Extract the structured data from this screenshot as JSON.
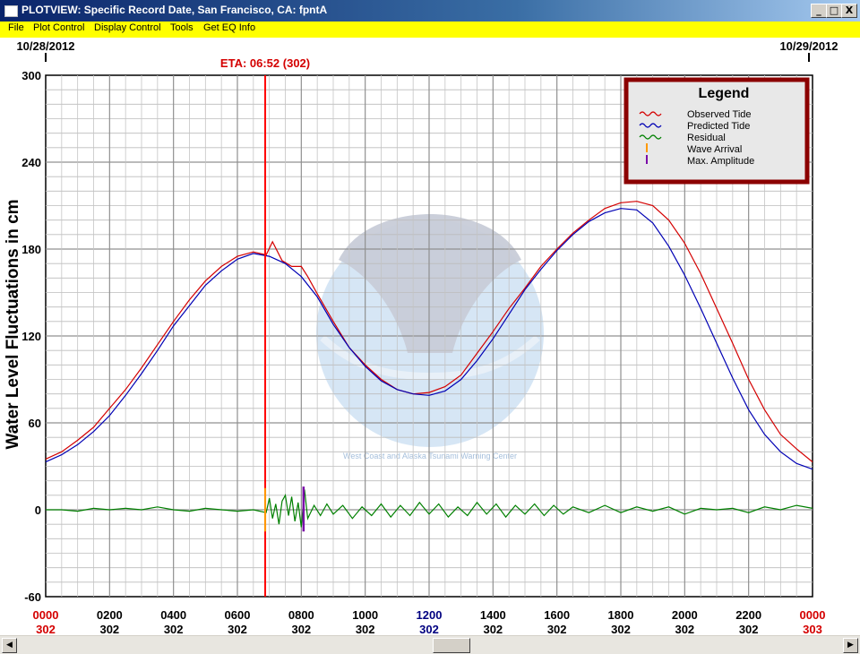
{
  "window": {
    "title": "PLOTVIEW: Specific Record Date, San Francisco, CA: fpntA",
    "minimize_glyph": "_",
    "maximize_glyph": "□",
    "close_glyph": "X"
  },
  "menu": [
    "File",
    "Plot Control",
    "Display Control",
    "Tools",
    "Get EQ Info"
  ],
  "header": {
    "date_left": "10/28/2012",
    "date_right": "10/29/2012",
    "eta_label": "ETA: 06:52 (302)"
  },
  "colors": {
    "observed": "#d40000",
    "predicted": "#0000b4",
    "residual": "#008000",
    "wave_arrival": "#ff9900",
    "max_amplitude": "#7a0aa8",
    "eta_line": "#ff0000",
    "legend_border": "#8b0000",
    "menu_bg": "#ffff00"
  },
  "legend": {
    "title": "Legend",
    "entries": [
      {
        "label": "Observed Tide",
        "color": "#d40000",
        "marker": "wave"
      },
      {
        "label": "Predicted Tide",
        "color": "#0000b4",
        "marker": "wave"
      },
      {
        "label": "Residual",
        "color": "#008000",
        "marker": "wave"
      },
      {
        "label": "Wave Arrival",
        "color": "#ff9900",
        "marker": "bar"
      },
      {
        "label": "Max. Amplitude",
        "color": "#7a0aa8",
        "marker": "bar"
      }
    ]
  },
  "watermark_text": "West Coast and Alaska Tsunami Warning Center",
  "chart_data": {
    "type": "line",
    "ylabel": "Water Level Fluctuations in cm",
    "xlabel": "",
    "xlim": [
      0,
      24
    ],
    "ylim": [
      -60,
      300
    ],
    "y_ticks": [
      300,
      240,
      180,
      120,
      60,
      0,
      -60
    ],
    "x_ticks": [
      {
        "x": 0,
        "time": "0000",
        "day": "302",
        "color": "#d40000"
      },
      {
        "x": 2,
        "time": "0200",
        "day": "302",
        "color": "#000000"
      },
      {
        "x": 4,
        "time": "0400",
        "day": "302",
        "color": "#000000"
      },
      {
        "x": 6,
        "time": "0600",
        "day": "302",
        "color": "#000000"
      },
      {
        "x": 8,
        "time": "0800",
        "day": "302",
        "color": "#000000"
      },
      {
        "x": 10,
        "time": "1000",
        "day": "302",
        "color": "#000000"
      },
      {
        "x": 12,
        "time": "1200",
        "day": "302",
        "color": "#000080"
      },
      {
        "x": 14,
        "time": "1400",
        "day": "302",
        "color": "#000000"
      },
      {
        "x": 16,
        "time": "1600",
        "day": "302",
        "color": "#000000"
      },
      {
        "x": 18,
        "time": "1800",
        "day": "302",
        "color": "#000000"
      },
      {
        "x": 20,
        "time": "2000",
        "day": "302",
        "color": "#000000"
      },
      {
        "x": 22,
        "time": "2200",
        "day": "302",
        "color": "#000000"
      },
      {
        "x": 24,
        "time": "0000",
        "day": "303",
        "color": "#d40000"
      }
    ],
    "grid": true,
    "eta_hour": 6.87,
    "wave_arrival": {
      "hour": 6.87,
      "min": -15,
      "max": 15
    },
    "max_amplitude": {
      "hour": 8.07,
      "min": -15,
      "max": 16
    },
    "series": [
      {
        "name": "Observed Tide",
        "color": "#d40000",
        "x": [
          0,
          0.5,
          1,
          1.5,
          2,
          2.5,
          3,
          3.5,
          4,
          4.5,
          5,
          5.5,
          6,
          6.5,
          6.9,
          7.1,
          7.4,
          7.7,
          8.0,
          8.2,
          8.5,
          9,
          9.5,
          10,
          10.5,
          11,
          11.5,
          12,
          12.5,
          13,
          13.5,
          14,
          14.5,
          15,
          15.5,
          16,
          16.5,
          17,
          17.5,
          18,
          18.5,
          19,
          19.5,
          20,
          20.5,
          21,
          21.5,
          22,
          22.5,
          23,
          23.5,
          24
        ],
        "y": [
          35,
          40,
          48,
          57,
          70,
          83,
          98,
          114,
          130,
          145,
          158,
          168,
          175,
          178,
          176,
          185,
          172,
          168,
          168,
          161,
          149,
          130,
          112,
          100,
          90,
          83,
          80,
          81,
          85,
          93,
          108,
          123,
          139,
          153,
          168,
          180,
          191,
          200,
          208,
          212,
          213,
          210,
          200,
          184,
          163,
          139,
          115,
          90,
          69,
          52,
          42,
          33
        ]
      },
      {
        "name": "Predicted Tide",
        "color": "#0000b4",
        "x": [
          0,
          0.5,
          1,
          1.5,
          2,
          2.5,
          3,
          3.5,
          4,
          4.5,
          5,
          5.5,
          6,
          6.5,
          7,
          7.5,
          8,
          8.5,
          9,
          9.5,
          10,
          10.5,
          11,
          11.5,
          12,
          12.5,
          13,
          13.5,
          14,
          14.5,
          15,
          15.5,
          16,
          16.5,
          17,
          17.5,
          18,
          18.5,
          19,
          19.5,
          20,
          20.5,
          21,
          21.5,
          22,
          22.5,
          23,
          23.5,
          24
        ],
        "y": [
          33,
          38,
          45,
          54,
          65,
          79,
          94,
          110,
          127,
          141,
          155,
          165,
          173,
          177,
          175,
          170,
          161,
          147,
          128,
          112,
          99,
          89,
          83,
          80,
          79,
          82,
          90,
          103,
          118,
          135,
          152,
          166,
          179,
          190,
          199,
          205,
          208,
          207,
          198,
          182,
          162,
          139,
          115,
          91,
          69,
          52,
          40,
          32,
          28
        ]
      },
      {
        "name": "Residual",
        "color": "#008000",
        "x": [
          0,
          0.5,
          1,
          1.5,
          2,
          2.5,
          3,
          3.5,
          4,
          4.5,
          5,
          5.5,
          6,
          6.5,
          6.9,
          7.0,
          7.1,
          7.2,
          7.3,
          7.4,
          7.5,
          7.6,
          7.7,
          7.8,
          7.9,
          8.0,
          8.1,
          8.2,
          8.4,
          8.6,
          8.8,
          9.0,
          9.3,
          9.6,
          9.9,
          10.2,
          10.5,
          10.8,
          11.1,
          11.4,
          11.7,
          12.0,
          12.3,
          12.6,
          12.9,
          13.2,
          13.5,
          13.8,
          14.1,
          14.4,
          14.7,
          15.0,
          15.3,
          15.6,
          15.9,
          16.2,
          16.5,
          17,
          17.5,
          18,
          18.5,
          19,
          19.5,
          20,
          20.5,
          21,
          21.5,
          22,
          22.5,
          23,
          23.5,
          24
        ],
        "y": [
          0,
          0,
          -1,
          1,
          0,
          1,
          0,
          2,
          0,
          -1,
          1,
          0,
          -1,
          0,
          -2,
          8,
          -6,
          4,
          -10,
          6,
          10,
          -4,
          9,
          -8,
          5,
          -12,
          14,
          -6,
          3,
          -4,
          4,
          -3,
          3,
          -6,
          2,
          -4,
          4,
          -5,
          3,
          -4,
          5,
          -3,
          4,
          -5,
          2,
          -4,
          5,
          -3,
          4,
          -5,
          3,
          -3,
          4,
          -4,
          3,
          -3,
          2,
          -2,
          3,
          -2,
          2,
          -1,
          2,
          -3,
          1,
          0,
          1,
          -2,
          2,
          0,
          3,
          1
        ]
      }
    ]
  }
}
